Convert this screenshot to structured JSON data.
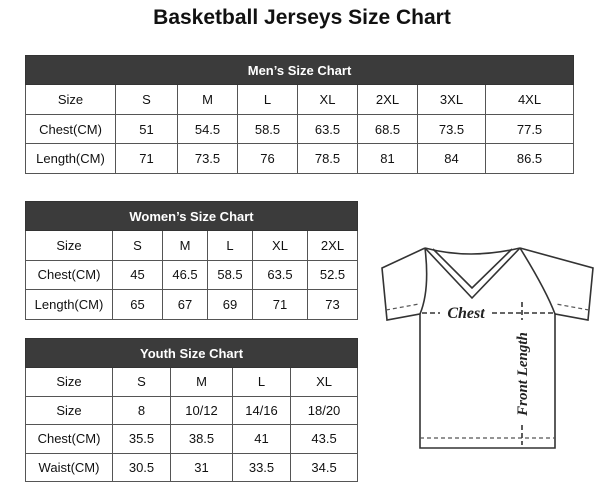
{
  "header": {
    "title": "Basketball Jerseys Size Chart"
  },
  "tables": [
    {
      "title": "Men’s Size Chart",
      "rows": [
        [
          "Size",
          "S",
          "M",
          "L",
          "XL",
          "2XL",
          "3XL",
          "4XL"
        ],
        [
          "Chest(CM)",
          "51",
          "54.5",
          "58.5",
          "63.5",
          "68.5",
          "73.5",
          "77.5"
        ],
        [
          "Length(CM)",
          "71",
          "73.5",
          "76",
          "78.5",
          "81",
          "84",
          "86.5"
        ]
      ]
    },
    {
      "title": "Women’s Size Chart",
      "rows": [
        [
          "Size",
          "S",
          "M",
          "L",
          "XL",
          "2XL"
        ],
        [
          "Chest(CM)",
          "45",
          "46.5",
          "58.5",
          "63.5",
          "52.5"
        ],
        [
          "Length(CM)",
          "65",
          "67",
          "69",
          "71",
          "73"
        ]
      ]
    },
    {
      "title": "Youth Size Chart",
      "rows": [
        [
          "Size",
          "S",
          "M",
          "L",
          "XL"
        ],
        [
          "Size",
          "8",
          "10/12",
          "14/16",
          "18/20"
        ],
        [
          "Chest(CM)",
          "35.5",
          "38.5",
          "41",
          "43.5"
        ],
        [
          "Waist(CM)",
          "30.5",
          "31",
          "33.5",
          "34.5"
        ]
      ]
    }
  ],
  "diagram": {
    "chest_label": "Chest",
    "length_label": "Front Length"
  }
}
